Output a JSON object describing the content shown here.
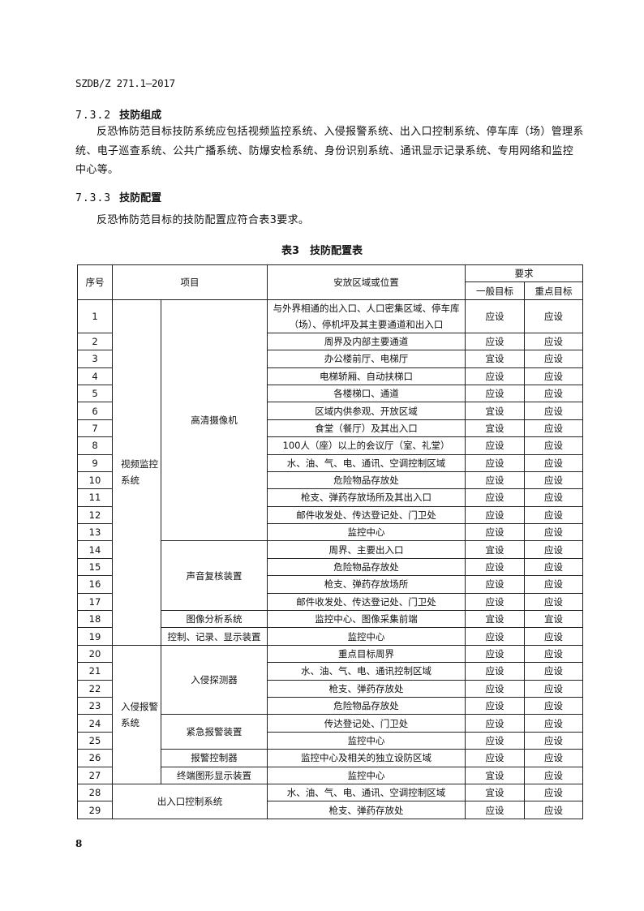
{
  "header": {
    "standard_no": "SZDB/Z 271.1—2017"
  },
  "section_732": {
    "number": "7.3.2",
    "title": "技防组成",
    "text": "反恐怖防范目标技防系统应包括视频监控系统、入侵报警系统、出入口控制系统、停车库（场）管理系统、电子巡查系统、公共广播系统、防爆安检系统、身份识别系统、通讯显示记录系统、专用网络和监控中心等。"
  },
  "section_733": {
    "number": "7.3.3",
    "title": "技防配置",
    "text": "反恐怖防范目标的技防配置应符合表3要求。"
  },
  "table": {
    "caption": "表3　技防配置表",
    "headers": {
      "no": "序号",
      "item": "项目",
      "location": "安放区域或位置",
      "requirement": "要求",
      "general": "一般目标",
      "key": "重点目标"
    },
    "systems": [
      {
        "label": "视频监控系统",
        "start": 0,
        "span": 19,
        "colspan": 1
      },
      {
        "label": "入侵报警系统",
        "start": 19,
        "span": 8,
        "colspan": 1
      },
      {
        "label": "出入口控制系统",
        "start": 27,
        "span": 2,
        "colspan": 2
      }
    ],
    "items": [
      {
        "label": "高清摄像机",
        "start": 0,
        "span": 13
      },
      {
        "label": "声音复核装置",
        "start": 13,
        "span": 4
      },
      {
        "label": "图像分析系统",
        "start": 17,
        "span": 1
      },
      {
        "label": "控制、记录、显示装置",
        "start": 18,
        "span": 1
      },
      {
        "label": "入侵探测器",
        "start": 19,
        "span": 4
      },
      {
        "label": "紧急报警装置",
        "start": 23,
        "span": 2
      },
      {
        "label": "报警控制器",
        "start": 25,
        "span": 1
      },
      {
        "label": "终端图形显示装置",
        "start": 26,
        "span": 1
      }
    ],
    "rows": [
      {
        "no": "1",
        "location": "与外界相通的出入口、人口密集区域、停车库（场）、停机坪及其主要通道和出入口",
        "general": "应设",
        "key": "应设"
      },
      {
        "no": "2",
        "location": "周界及内部主要通道",
        "general": "应设",
        "key": "应设"
      },
      {
        "no": "3",
        "location": "办公楼前厅、电梯厅",
        "general": "宜设",
        "key": "应设"
      },
      {
        "no": "4",
        "location": "电梯轿厢、自动扶梯口",
        "general": "应设",
        "key": "应设"
      },
      {
        "no": "5",
        "location": "各楼梯口、通道",
        "general": "应设",
        "key": "应设"
      },
      {
        "no": "6",
        "location": "区域内供参观、开放区域",
        "general": "宜设",
        "key": "应设"
      },
      {
        "no": "7",
        "location": "食堂（餐厅）及其出入口",
        "general": "宜设",
        "key": "应设"
      },
      {
        "no": "8",
        "location": "100人（座）以上的会议厅（室、礼堂）",
        "general": "应设",
        "key": "应设"
      },
      {
        "no": "9",
        "location": "水、油、气、电、通讯、空调控制区域",
        "general": "应设",
        "key": "应设"
      },
      {
        "no": "10",
        "location": "危险物品存放处",
        "general": "应设",
        "key": "应设"
      },
      {
        "no": "11",
        "location": "枪支、弹药存放场所及其出入口",
        "general": "应设",
        "key": "应设"
      },
      {
        "no": "12",
        "location": "邮件收发处、传达登记处、门卫处",
        "general": "应设",
        "key": "应设"
      },
      {
        "no": "13",
        "location": "监控中心",
        "general": "应设",
        "key": "应设"
      },
      {
        "no": "14",
        "location": "周界、主要出入口",
        "general": "宜设",
        "key": "应设"
      },
      {
        "no": "15",
        "location": "危险物品存放处",
        "general": "应设",
        "key": "应设"
      },
      {
        "no": "16",
        "location": "枪支、弹药存放场所",
        "general": "应设",
        "key": "应设"
      },
      {
        "no": "17",
        "location": "邮件收发处、传达登记处、门卫处",
        "general": "应设",
        "key": "应设"
      },
      {
        "no": "18",
        "location": "监控中心、图像采集前端",
        "general": "宜设",
        "key": "宜设"
      },
      {
        "no": "19",
        "location": "监控中心",
        "general": "应设",
        "key": "应设"
      },
      {
        "no": "20",
        "location": "重点目标周界",
        "general": "应设",
        "key": "应设"
      },
      {
        "no": "21",
        "location": "水、油、气、电、通讯控制区域",
        "general": "应设",
        "key": "应设"
      },
      {
        "no": "22",
        "location": "枪支、弹药存放处",
        "general": "应设",
        "key": "应设"
      },
      {
        "no": "23",
        "location": "危险物品存放处",
        "general": "应设",
        "key": "应设"
      },
      {
        "no": "24",
        "location": "传达登记处、门卫处",
        "general": "应设",
        "key": "应设"
      },
      {
        "no": "25",
        "location": "监控中心",
        "general": "应设",
        "key": "应设"
      },
      {
        "no": "26",
        "location": "监控中心及相关的独立设防区域",
        "general": "应设",
        "key": "应设"
      },
      {
        "no": "27",
        "location": "监控中心",
        "general": "宜设",
        "key": "应设"
      },
      {
        "no": "28",
        "location": "水、油、气、电、通讯、空调控制区域",
        "general": "宜设",
        "key": "应设"
      },
      {
        "no": "29",
        "location": "枪支、弹药存放处",
        "general": "应设",
        "key": "应设"
      }
    ]
  },
  "footer": {
    "page_number": "8"
  }
}
